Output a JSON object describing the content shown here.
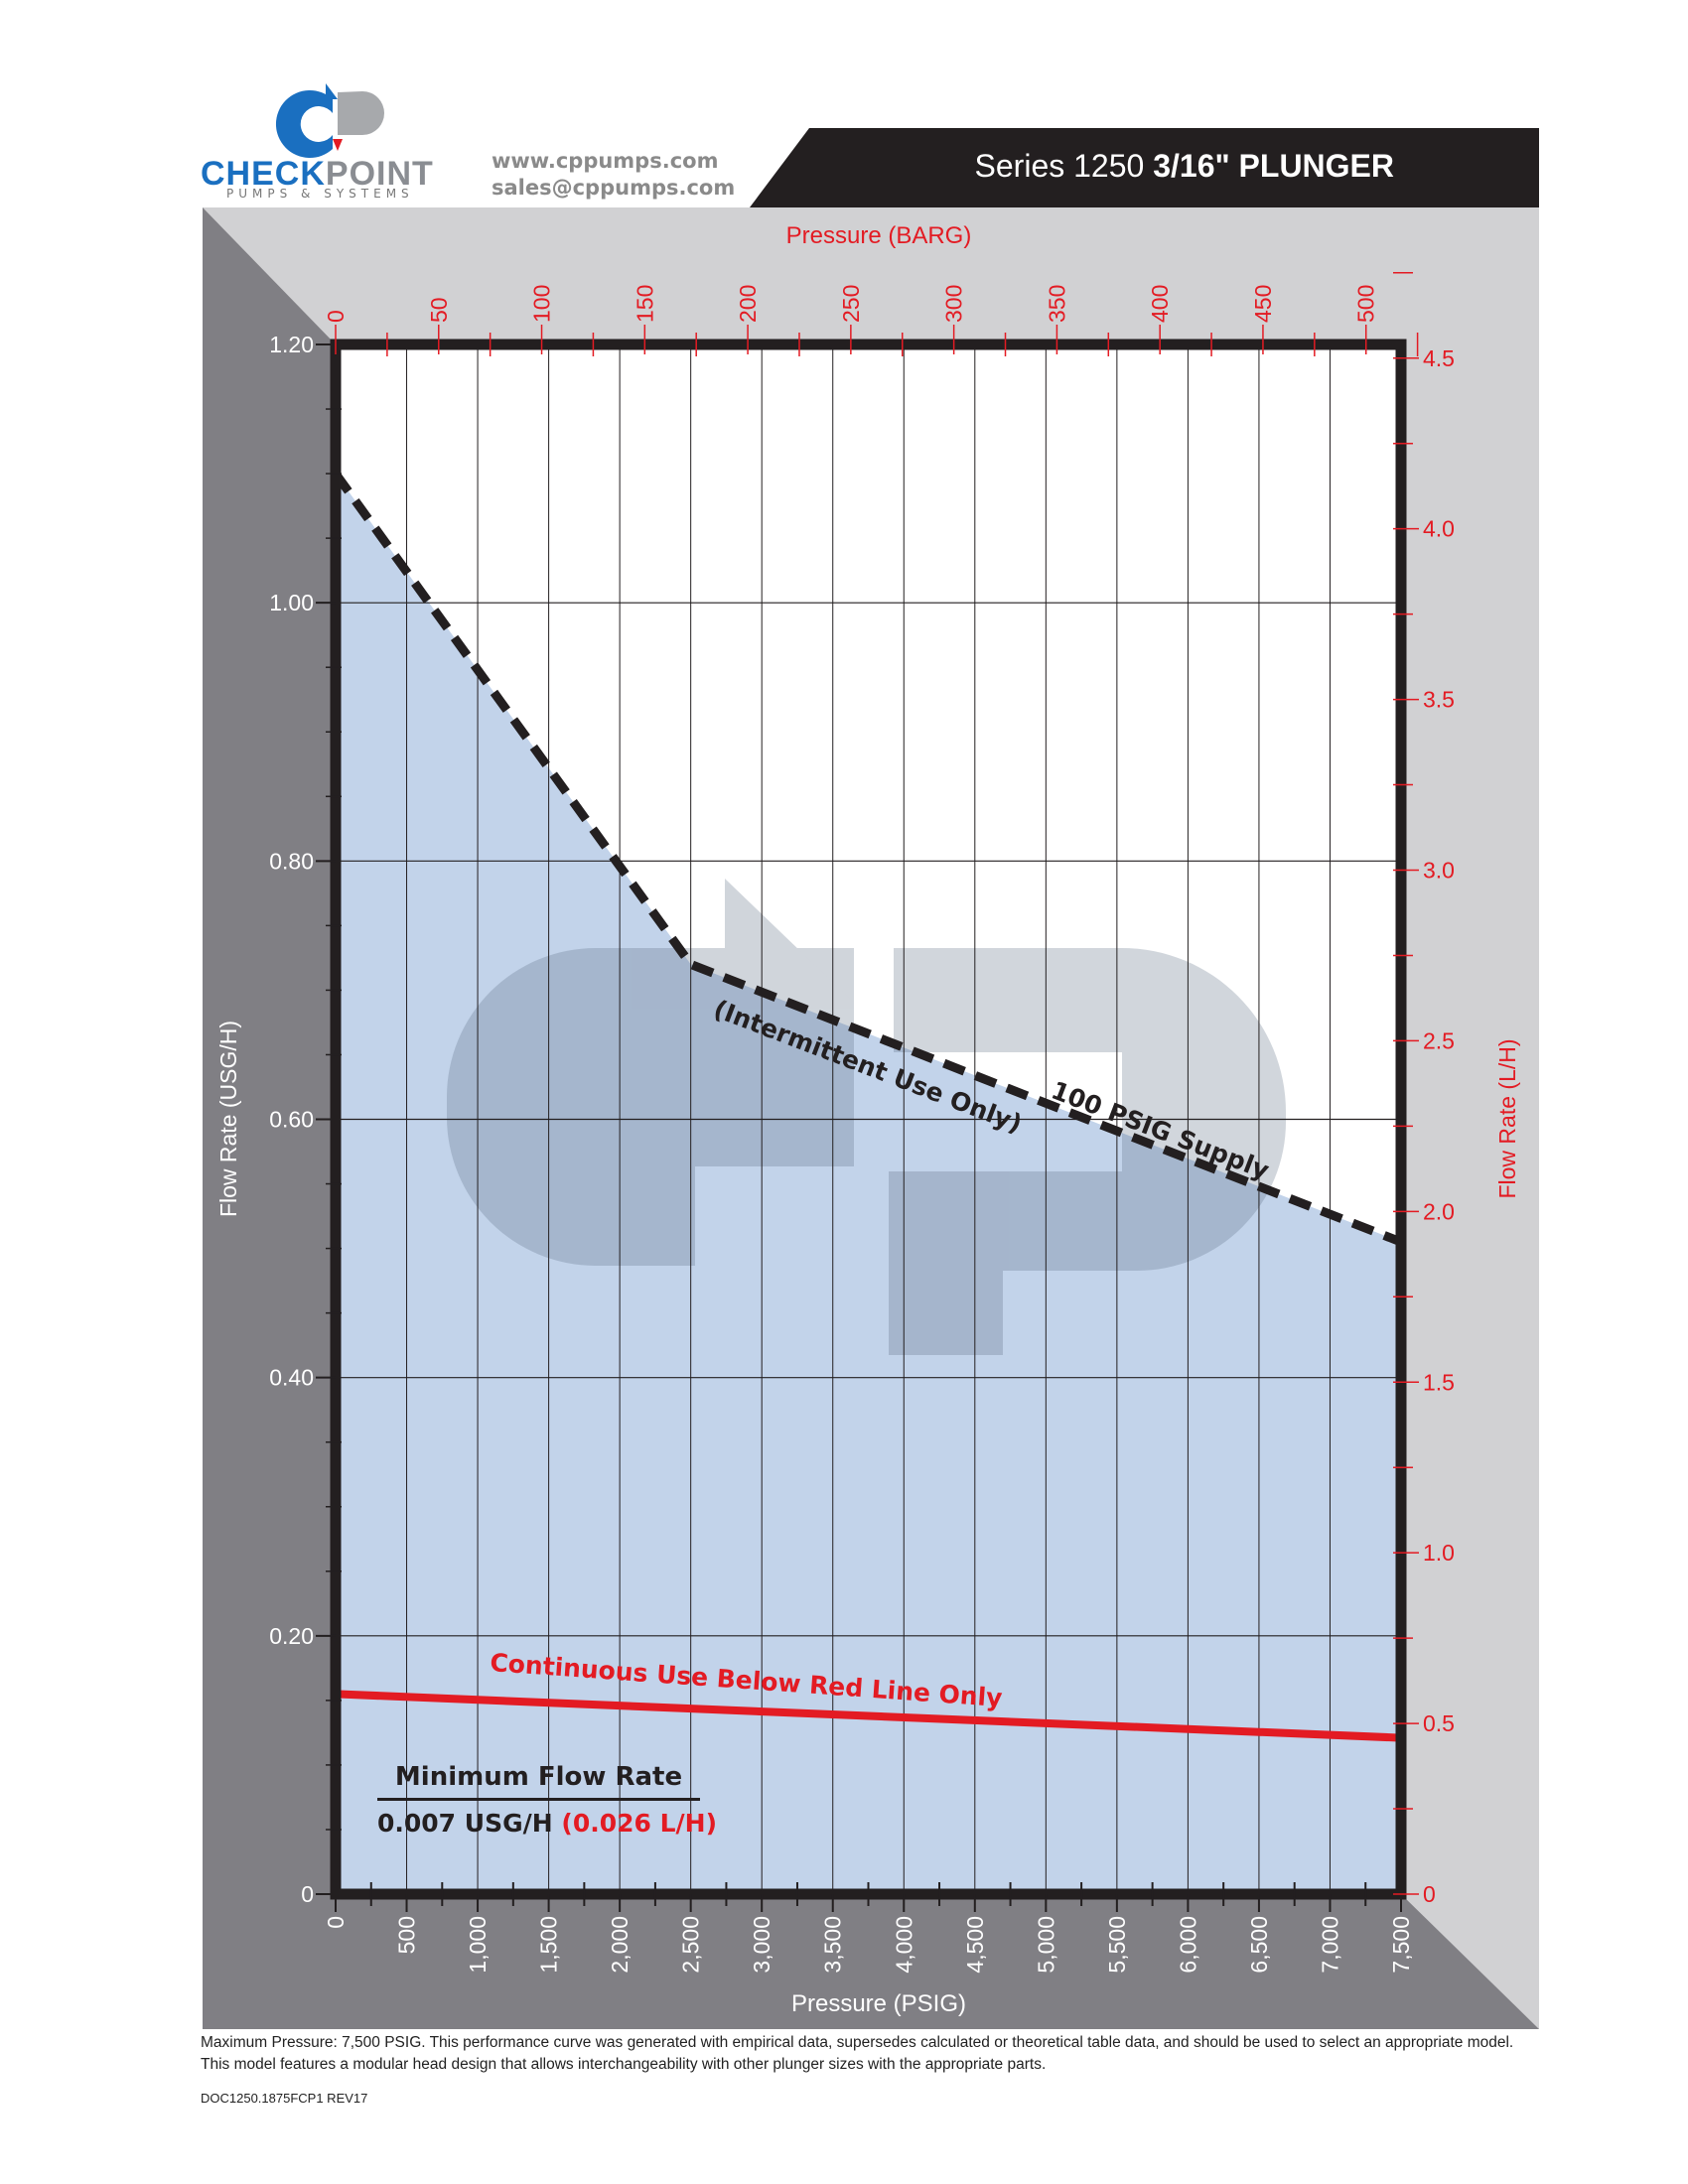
{
  "header": {
    "logo_text_blue": "CHECK",
    "logo_text_grey": "POINT",
    "logo_subtitle": "PUMPS & SYSTEMS",
    "website": "www.cppumps.com",
    "email": "sales@cppumps.com",
    "title_prefix": "Series 1250",
    "title_bold": "3/16\" PLUNGER"
  },
  "min_flow": {
    "heading": "Minimum Flow Rate",
    "value_usg": "0.007 USG/H",
    "value_lh": "(0.026 L/H)"
  },
  "footer": {
    "note": "Maximum Pressure: 7,500 PSIG. This performance curve was generated with empirical data, supersedes calculated or theoretical table data, and should be used to select an appropriate model. This model features a modular head design that allows interchangeability with other plunger sizes with the appropriate parts.",
    "doc_id": "DOC1250.1875FCP1 REV17"
  },
  "colors": {
    "accent_red": "#e31b23",
    "fill_blue": "#c2d3ea",
    "dark_frame": "#231f20",
    "panel_dark": "#807f84",
    "panel_light": "#d1d1d3"
  },
  "chart_data": {
    "type": "line",
    "xlabel": "Pressure (PSIG)",
    "ylabel": "Flow Rate (USG/H)",
    "x2label": "Pressure (BARG)",
    "y2label": "Flow Rate (L/H)",
    "xlim": [
      0,
      7500
    ],
    "ylim": [
      0,
      1.2
    ],
    "x2lim": [
      0,
      517
    ],
    "y2lim": [
      0,
      4.54
    ],
    "xticks": [
      "0",
      "500",
      "1,000",
      "1,500",
      "2,000",
      "2,500",
      "3,000",
      "3,500",
      "4,000",
      "4,500",
      "5,000",
      "5,500",
      "6,000",
      "6,500",
      "7,000",
      "7,500"
    ],
    "xtick_values": [
      0,
      500,
      1000,
      1500,
      2000,
      2500,
      3000,
      3500,
      4000,
      4500,
      5000,
      5500,
      6000,
      6500,
      7000,
      7500
    ],
    "yticks": [
      "0",
      "0.20",
      "0.40",
      "0.60",
      "0.80",
      "1.00",
      "1.20"
    ],
    "ytick_values": [
      0,
      0.2,
      0.4,
      0.6,
      0.8,
      1.0,
      1.2
    ],
    "x2ticks": [
      "0",
      "50",
      "100",
      "150",
      "200",
      "250",
      "300",
      "350",
      "400",
      "450",
      "500"
    ],
    "x2tick_values": [
      0,
      50,
      100,
      150,
      200,
      250,
      300,
      350,
      400,
      450,
      500
    ],
    "y2ticks": [
      "0",
      "0.5",
      "1.0",
      "1.5",
      "2.0",
      "2.5",
      "3.0",
      "3.5",
      "4.0",
      "4.5"
    ],
    "y2tick_values": [
      0,
      0.5,
      1.0,
      1.5,
      2.0,
      2.5,
      3.0,
      3.5,
      4.0,
      4.5
    ],
    "grid": true,
    "series": [
      {
        "name": "100 PSIG Supply",
        "style": "dashed",
        "color": "#231f20",
        "x": [
          0,
          2500,
          7500
        ],
        "y": [
          1.1,
          0.72,
          0.505
        ]
      },
      {
        "name": "Continuous Use Below Red Line Only",
        "style": "solid",
        "color": "#e31b23",
        "x": [
          0,
          7500
        ],
        "y": [
          0.155,
          0.121
        ]
      }
    ],
    "annotations": {
      "supply": "100 PSIG Supply",
      "intermittent": "(Intermittent Use Only)",
      "continuous": "Continuous Use Below Red Line Only"
    }
  }
}
